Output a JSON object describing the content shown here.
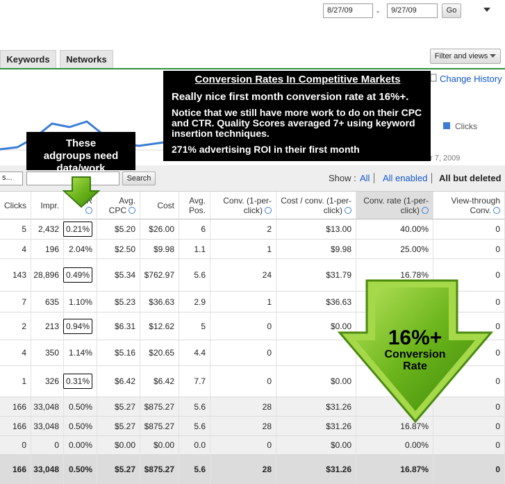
{
  "date_range": {
    "start": "8/27/09",
    "separator": "-",
    "end": "9/27/09",
    "button": "Go"
  },
  "tabs": [
    "Keywords",
    "Networks"
  ],
  "filter_button": "Filter and views",
  "change_history": "Change History",
  "graph": {
    "legend": "Clicks",
    "date_fragment": "r 7, 2009"
  },
  "callout": {
    "title": "Conversion Rates In Competitive Markets",
    "lines": [
      "Really nice first month conversion rate at 16%+.",
      "Notice that we still have more work to do on their CPC and CTR. Quality Scores averaged 7+ using keyword insertion techniques.",
      "271% advertising ROI in their first month"
    ]
  },
  "adgroups_note": "These adgroups need data/work",
  "toolbar": {
    "dropdown": "s...",
    "search": "Search",
    "show_label": "Show :",
    "filters": [
      "All",
      "All enabled",
      "All but deleted"
    ]
  },
  "table": {
    "headers": [
      "Clicks",
      "Impr.",
      "CTR",
      "Avg. CPC",
      "Cost",
      "Avg. Pos.",
      "Conv. (1-per-click)",
      "Cost / conv. (1-per-click)",
      "Conv. rate (1-per-click)",
      "View-through Conv."
    ],
    "rows": [
      [
        "5",
        "2,432",
        "0.21%",
        "$5.20",
        "$26.00",
        "6",
        "2",
        "$13.00",
        "40.00%",
        "0"
      ],
      [
        "4",
        "196",
        "2.04%",
        "$2.50",
        "$9.98",
        "1.1",
        "1",
        "$9.98",
        "25.00%",
        "0"
      ],
      [
        "143",
        "28,896",
        "0.49%",
        "$5.34",
        "$762.97",
        "5.6",
        "24",
        "$31.79",
        "16.78%",
        "0"
      ],
      [
        "7",
        "635",
        "1.10%",
        "$5.23",
        "$36.63",
        "2.9",
        "1",
        "$36.63",
        null,
        "0"
      ],
      [
        "2",
        "213",
        "0.94%",
        "$6.31",
        "$12.62",
        "5",
        "0",
        "$0.00",
        null,
        "0"
      ],
      [
        "4",
        "350",
        "1.14%",
        "$5.16",
        "$20.65",
        "4.4",
        "0",
        null,
        null,
        "0"
      ],
      [
        "1",
        "326",
        "0.31%",
        "$6.42",
        "$6.42",
        "7.7",
        "0",
        "$0.00",
        null,
        "0"
      ],
      [
        "166",
        "33,048",
        "0.50%",
        "$5.27",
        "$875.27",
        "5.6",
        "28",
        "$31.26",
        null,
        "0"
      ],
      [
        "166",
        "33,048",
        "0.50%",
        "$5.27",
        "$875.27",
        "5.6",
        "28",
        "$31.26",
        "16.87%",
        "0"
      ],
      [
        "0",
        "0",
        "0.00%",
        "$0.00",
        "$0.00",
        "0.0",
        "0",
        "$0.00",
        "0.00%",
        "0"
      ],
      [
        "166",
        "33,048",
        "0.50%",
        "$5.27",
        "$875.27",
        "5.6",
        "28",
        "$31.26",
        "16.87%",
        "0"
      ]
    ]
  },
  "big_arrow": {
    "headline": "16%+",
    "caption": "Conversion Rate"
  }
}
